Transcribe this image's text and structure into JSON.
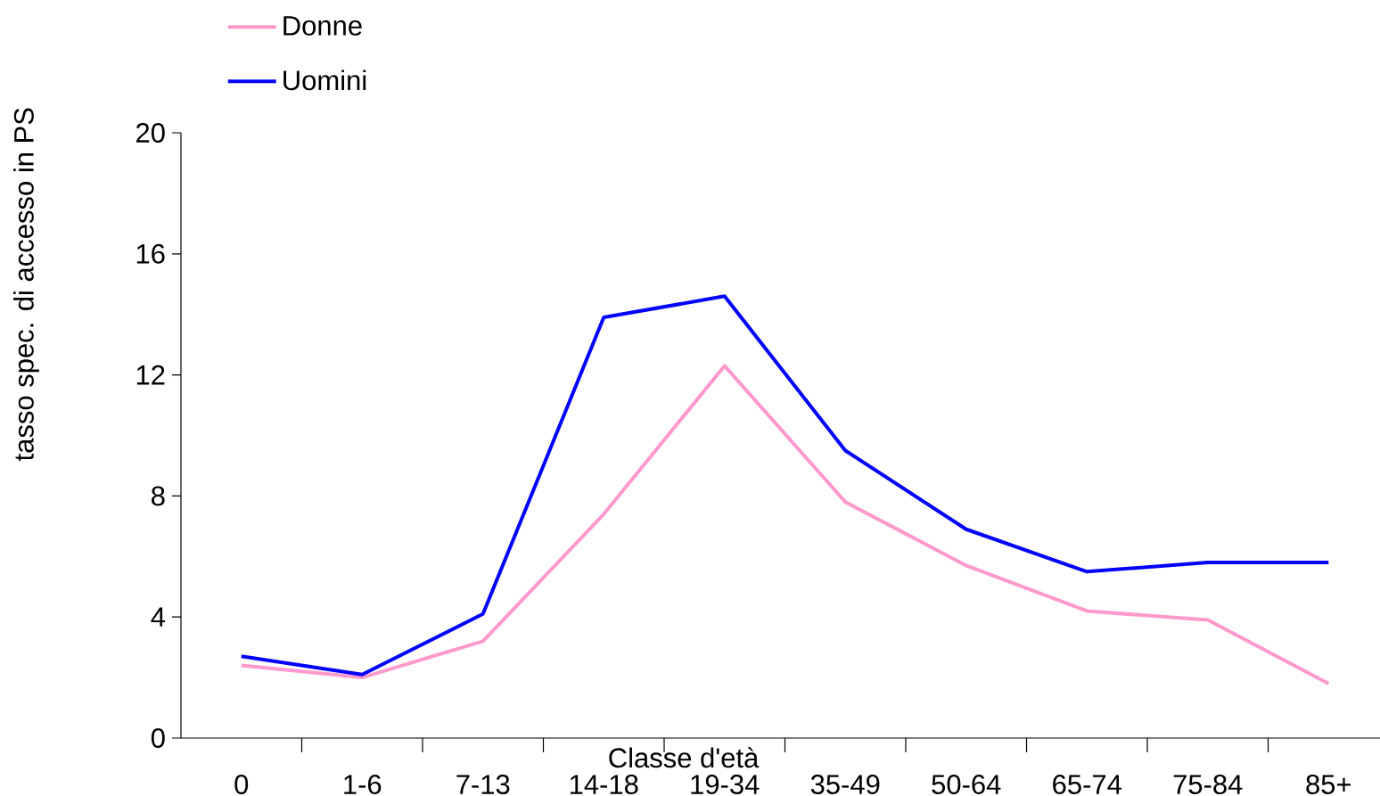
{
  "chart_data": {
    "type": "line",
    "xlabel": "Classe d'età",
    "ylabel": "tasso spec. di accesso in PS",
    "categories": [
      "0",
      "1-6",
      "7-13",
      "14-18",
      "19-34",
      "35-49",
      "50-64",
      "65-74",
      "75-84",
      "85+"
    ],
    "series": [
      {
        "name": "Donne",
        "color": "#ff99cc",
        "values": [
          2.4,
          2.0,
          3.2,
          7.4,
          12.3,
          7.8,
          5.7,
          4.2,
          3.9,
          1.8
        ]
      },
      {
        "name": "Uomini",
        "color": "#0000ff",
        "values": [
          2.7,
          2.1,
          4.1,
          13.9,
          14.6,
          9.5,
          6.9,
          5.5,
          5.8,
          5.8
        ]
      }
    ],
    "ylim": [
      0,
      20
    ],
    "yticks": [
      0,
      4,
      8,
      12,
      16,
      20
    ],
    "grid": false,
    "legend": "top left",
    "marker": "none",
    "line_style": "solid"
  }
}
